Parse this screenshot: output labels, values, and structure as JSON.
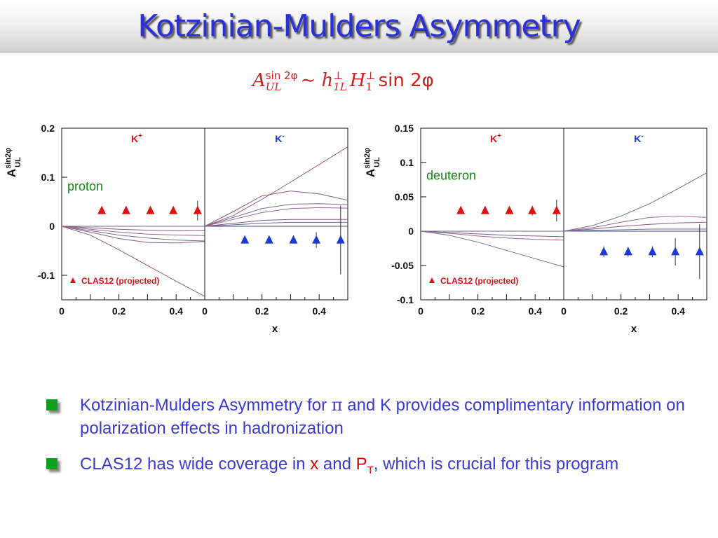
{
  "title": "Kotzinian-Mulders Asymmetry",
  "formula": {
    "A": "A",
    "A_sup": "sin 2φ",
    "A_sub": "UL",
    "tilde": "∼",
    "h": "h",
    "h_sup": "⊥",
    "h_sub": "1L",
    "H": "H",
    "H_sup": "⊥",
    "H_sub": "1",
    "tail": "sin 2φ"
  },
  "colors": {
    "title": "#2b2fd6",
    "kplus": "#dd1111",
    "kminus": "#1a3ad6",
    "label_green": "#118811",
    "formula": "#cc2222",
    "bullet_text": "#3a3ad0",
    "bullet_square": "#10a020"
  },
  "bullets": [
    {
      "text_a": "Kotzinian-Mulders Asymmetry for ",
      "symbol": "π",
      "text_b": " and K provides complimentary information on polarization effects in hadronization"
    },
    {
      "text_a": "CLAS12 has wide coverage in ",
      "x": "x",
      "and": " and ",
      "P": "P",
      "P_sub": "T",
      "text_b": ",  which is crucial for this program"
    }
  ],
  "chart_data": [
    {
      "type": "scatter",
      "target_label": "proton",
      "ylabel_main": "A",
      "ylabel_sup": "sin2φ",
      "ylabel_sub": "UL",
      "xlabel": "x",
      "ylim": [
        -0.15,
        0.2
      ],
      "yticks": [
        0.2,
        0.1,
        0,
        -0.1
      ],
      "ytick_labels": [
        "0.2",
        "0.1",
        "0",
        "-0.1"
      ],
      "legend": "CLAS12 (projected)",
      "legend_placement": "bottom-left",
      "panels": [
        {
          "name": "K",
          "charge": "+",
          "xlim": [
            0,
            0.5
          ],
          "xticks": [
            0,
            0.2,
            0.4
          ],
          "xtick_labels": [
            "0",
            "0.2",
            "0.4"
          ],
          "points": {
            "x": [
              0.14,
              0.225,
              0.31,
              0.39,
              0.475
            ],
            "y": [
              0.032,
              0.032,
              0.032,
              0.032,
              0.032
            ],
            "err": [
              0.003,
              0.003,
              0.004,
              0.006,
              0.02
            ]
          },
          "curves": [
            {
              "x": [
                0,
                0.1,
                0.2,
                0.3,
                0.4,
                0.5
              ],
              "y": [
                0,
                0,
                0,
                0,
                0,
                0
              ]
            },
            {
              "x": [
                0,
                0.1,
                0.2,
                0.3,
                0.4,
                0.5
              ],
              "y": [
                0,
                -0.003,
                -0.006,
                -0.008,
                -0.009,
                -0.009
              ]
            },
            {
              "x": [
                0,
                0.1,
                0.2,
                0.3,
                0.4,
                0.5
              ],
              "y": [
                0,
                -0.006,
                -0.012,
                -0.016,
                -0.018,
                -0.019
              ]
            },
            {
              "x": [
                0,
                0.1,
                0.2,
                0.3,
                0.4,
                0.5
              ],
              "y": [
                0,
                -0.009,
                -0.018,
                -0.024,
                -0.028,
                -0.03
              ]
            },
            {
              "x": [
                0,
                0.1,
                0.2,
                0.3,
                0.4,
                0.5
              ],
              "y": [
                0,
                -0.012,
                -0.025,
                -0.033,
                -0.034,
                -0.031
              ]
            },
            {
              "x": [
                0,
                0.1,
                0.2,
                0.3,
                0.4,
                0.5
              ],
              "y": [
                0,
                -0.018,
                -0.048,
                -0.08,
                -0.112,
                -0.143
              ]
            }
          ]
        },
        {
          "name": "K",
          "charge": "-",
          "xlim": [
            0,
            0.5
          ],
          "xticks": [
            0,
            0.2,
            0.4
          ],
          "xtick_labels": [
            "0",
            "0.2",
            "0.4"
          ],
          "points": {
            "x": [
              0.14,
              0.225,
              0.31,
              0.39,
              0.475
            ],
            "y": [
              -0.028,
              -0.028,
              -0.028,
              -0.028,
              -0.028
            ],
            "err": [
              0.004,
              0.005,
              0.007,
              0.016,
              0.07
            ]
          },
          "curves": [
            {
              "x": [
                0,
                0.1,
                0.2,
                0.3,
                0.4,
                0.5
              ],
              "y": [
                0,
                0.003,
                0.006,
                0.008,
                0.008,
                0.008
              ]
            },
            {
              "x": [
                0,
                0.1,
                0.2,
                0.3,
                0.4,
                0.5
              ],
              "y": [
                0,
                0.006,
                0.012,
                0.014,
                0.014,
                0.014
              ]
            },
            {
              "x": [
                0,
                0.1,
                0.2,
                0.3,
                0.4,
                0.5
              ],
              "y": [
                0,
                0.014,
                0.028,
                0.036,
                0.038,
                0.037
              ]
            },
            {
              "x": [
                0,
                0.1,
                0.2,
                0.3,
                0.4,
                0.5
              ],
              "y": [
                0,
                0.018,
                0.036,
                0.045,
                0.046,
                0.044
              ]
            },
            {
              "x": [
                0,
                0.1,
                0.2,
                0.3,
                0.4,
                0.5
              ],
              "y": [
                0,
                0.03,
                0.062,
                0.072,
                0.066,
                0.053
              ]
            },
            {
              "x": [
                0,
                0.1,
                0.2,
                0.3,
                0.4,
                0.5
              ],
              "y": [
                0,
                0.022,
                0.055,
                0.09,
                0.126,
                0.162
              ]
            }
          ]
        }
      ]
    },
    {
      "type": "scatter",
      "target_label": "deuteron",
      "ylabel_main": "A",
      "ylabel_sup": "sin2φ",
      "ylabel_sub": "UL",
      "xlabel": "x",
      "ylim": [
        -0.1,
        0.15
      ],
      "yticks": [
        0.15,
        0.1,
        0.05,
        0,
        -0.05,
        -0.1
      ],
      "ytick_labels": [
        "0.15",
        "0.1",
        "0.05",
        "0",
        "-0.05",
        "-0.1"
      ],
      "legend": "CLAS12 (projected)",
      "legend_placement": "bottom-left",
      "panels": [
        {
          "name": "K",
          "charge": "+",
          "xlim": [
            0,
            0.5
          ],
          "xticks": [
            0,
            0.2,
            0.4
          ],
          "xtick_labels": [
            "0",
            "0.2",
            "0.4"
          ],
          "points": {
            "x": [
              0.14,
              0.225,
              0.31,
              0.39,
              0.475
            ],
            "y": [
              0.03,
              0.03,
              0.03,
              0.03,
              0.03
            ],
            "err": [
              0.003,
              0.003,
              0.005,
              0.007,
              0.016
            ]
          },
          "curves": [
            {
              "x": [
                0,
                0.1,
                0.2,
                0.3,
                0.4,
                0.5
              ],
              "y": [
                0,
                0,
                0,
                0,
                0,
                0
              ]
            },
            {
              "x": [
                0,
                0.1,
                0.2,
                0.3,
                0.4,
                0.5
              ],
              "y": [
                0,
                -0.002,
                -0.004,
                -0.006,
                -0.007,
                -0.008
              ]
            },
            {
              "x": [
                0,
                0.1,
                0.2,
                0.3,
                0.4,
                0.5
              ],
              "y": [
                0,
                -0.003,
                -0.007,
                -0.01,
                -0.012,
                -0.013
              ]
            },
            {
              "x": [
                0,
                0.1,
                0.2,
                0.3,
                0.4,
                0.5
              ],
              "y": [
                0,
                -0.006,
                -0.016,
                -0.028,
                -0.04,
                -0.052
              ]
            }
          ]
        },
        {
          "name": "K",
          "charge": "-",
          "xlim": [
            0,
            0.5
          ],
          "xticks": [
            0,
            0.2,
            0.4
          ],
          "xtick_labels": [
            "0",
            "0.2",
            "0.4"
          ],
          "points": {
            "x": [
              0.14,
              0.225,
              0.31,
              0.39,
              0.475
            ],
            "y": [
              -0.03,
              -0.03,
              -0.03,
              -0.03,
              -0.03
            ],
            "err": [
              0.008,
              0.007,
              0.008,
              0.02,
              0.04
            ]
          },
          "curves": [
            {
              "x": [
                0,
                0.1,
                0.2,
                0.3,
                0.4,
                0.5
              ],
              "y": [
                0,
                0.001,
                0.002,
                0.003,
                0.003,
                0.003
              ]
            },
            {
              "x": [
                0,
                0.1,
                0.2,
                0.3,
                0.4,
                0.5
              ],
              "y": [
                0,
                0.003,
                0.007,
                0.01,
                0.012,
                0.013
              ]
            },
            {
              "x": [
                0,
                0.1,
                0.2,
                0.3,
                0.4,
                0.5
              ],
              "y": [
                0,
                0.005,
                0.013,
                0.02,
                0.022,
                0.02
              ]
            },
            {
              "x": [
                0,
                0.1,
                0.2,
                0.3,
                0.4,
                0.5
              ],
              "y": [
                0,
                0.008,
                0.022,
                0.04,
                0.062,
                0.085
              ]
            }
          ]
        }
      ]
    }
  ]
}
